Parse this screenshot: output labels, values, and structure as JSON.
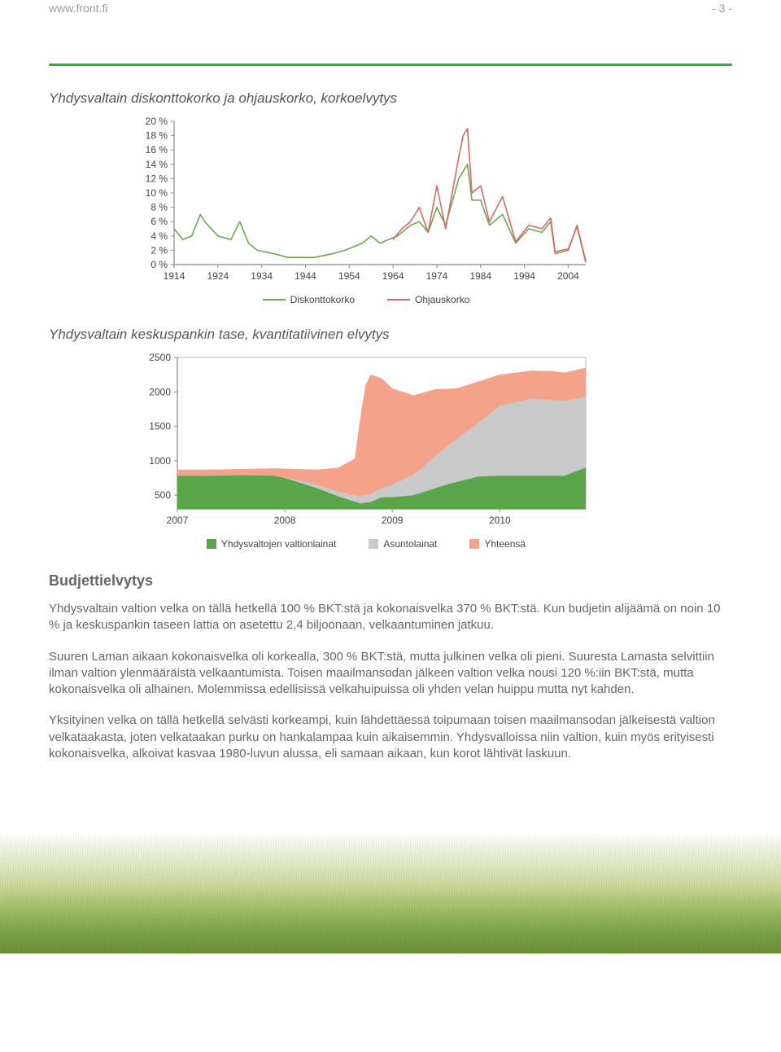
{
  "header": {
    "site": "www.front.fi",
    "page_number": "- 3 -"
  },
  "chart1": {
    "title": "Yhdysvaltain diskonttokorko ja ohjauskorko, korkoelvytys",
    "type": "line",
    "ylabels": [
      "20 %",
      "18 %",
      "16 %",
      "14 %",
      "12 %",
      "10 %",
      "8 %",
      "6 %",
      "4 %",
      "2 %",
      "0 %"
    ],
    "xlabels": [
      "1914",
      "1924",
      "1934",
      "1944",
      "1954",
      "1964",
      "1974",
      "1984",
      "1994",
      "2004"
    ],
    "ylim": [
      0,
      20
    ],
    "xlim": [
      1914,
      2008
    ],
    "series": {
      "diskontto": {
        "label": "Diskonttokorko",
        "color": "#6aa84f",
        "points": [
          [
            1914,
            5.0
          ],
          [
            1916,
            3.5
          ],
          [
            1918,
            4.0
          ],
          [
            1920,
            7.0
          ],
          [
            1921,
            6.0
          ],
          [
            1924,
            4.0
          ],
          [
            1927,
            3.5
          ],
          [
            1929,
            6.0
          ],
          [
            1931,
            3.0
          ],
          [
            1933,
            2.0
          ],
          [
            1937,
            1.5
          ],
          [
            1940,
            1.0
          ],
          [
            1946,
            1.0
          ],
          [
            1950,
            1.5
          ],
          [
            1953,
            2.0
          ],
          [
            1957,
            3.0
          ],
          [
            1959,
            4.0
          ],
          [
            1961,
            3.0
          ],
          [
            1965,
            4.0
          ],
          [
            1968,
            5.5
          ],
          [
            1970,
            6.0
          ],
          [
            1972,
            4.5
          ],
          [
            1974,
            8.0
          ],
          [
            1976,
            5.5
          ],
          [
            1979,
            12.0
          ],
          [
            1980,
            13.0
          ],
          [
            1981,
            14.0
          ],
          [
            1982,
            9.0
          ],
          [
            1984,
            9.0
          ],
          [
            1986,
            5.5
          ],
          [
            1989,
            7.0
          ],
          [
            1992,
            3.0
          ],
          [
            1995,
            5.0
          ],
          [
            1998,
            4.5
          ],
          [
            2000,
            6.0
          ],
          [
            2001,
            1.5
          ],
          [
            2004,
            2.0
          ],
          [
            2006,
            5.5
          ],
          [
            2008,
            0.5
          ]
        ]
      },
      "ohjaus": {
        "label": "Ohjauskorko",
        "color": "#e06666",
        "points": [
          [
            1964,
            3.5
          ],
          [
            1966,
            5.0
          ],
          [
            1968,
            6.0
          ],
          [
            1970,
            8.0
          ],
          [
            1972,
            4.5
          ],
          [
            1974,
            11.0
          ],
          [
            1976,
            5.0
          ],
          [
            1979,
            15.0
          ],
          [
            1980,
            18.0
          ],
          [
            1981,
            19.0
          ],
          [
            1982,
            10.0
          ],
          [
            1984,
            11.0
          ],
          [
            1986,
            6.0
          ],
          [
            1989,
            9.5
          ],
          [
            1992,
            3.2
          ],
          [
            1995,
            5.5
          ],
          [
            1998,
            5.0
          ],
          [
            2000,
            6.5
          ],
          [
            2001,
            1.8
          ],
          [
            2004,
            2.2
          ],
          [
            2006,
            5.3
          ],
          [
            2008,
            0.3
          ]
        ]
      }
    }
  },
  "chart2": {
    "title": "Yhdysvaltain keskuspankin tase, kvantitatiivinen elvytys",
    "type": "area",
    "ylabels": [
      "2500",
      "2000",
      "1500",
      "1000",
      "500"
    ],
    "xlabels": [
      "2007",
      "2008",
      "2009",
      "2010"
    ],
    "ylim": [
      300,
      2500
    ],
    "xlim": [
      2007,
      2010.8
    ],
    "series": {
      "valtionlainat": {
        "label": "Yhdysvaltojen valtionlainat",
        "color": "#5aa54a",
        "points": [
          [
            2007.0,
            780
          ],
          [
            2007.3,
            780
          ],
          [
            2007.6,
            790
          ],
          [
            2007.9,
            780
          ],
          [
            2008.0,
            750
          ],
          [
            2008.3,
            600
          ],
          [
            2008.5,
            480
          ],
          [
            2008.7,
            380
          ],
          [
            2008.8,
            400
          ],
          [
            2008.9,
            470
          ],
          [
            2009.0,
            470
          ],
          [
            2009.2,
            500
          ],
          [
            2009.5,
            650
          ],
          [
            2009.8,
            770
          ],
          [
            2010.0,
            780
          ],
          [
            2010.3,
            780
          ],
          [
            2010.6,
            780
          ],
          [
            2010.8,
            900
          ]
        ]
      },
      "asuntolainat": {
        "label": "Asuntolainat",
        "color": "#c9c9c9",
        "points": [
          [
            2007.0,
            780
          ],
          [
            2007.5,
            790
          ],
          [
            2007.9,
            780
          ],
          [
            2008.0,
            760
          ],
          [
            2008.3,
            650
          ],
          [
            2008.5,
            550
          ],
          [
            2008.7,
            480
          ],
          [
            2008.8,
            520
          ],
          [
            2008.9,
            600
          ],
          [
            2009.0,
            650
          ],
          [
            2009.2,
            800
          ],
          [
            2009.5,
            1200
          ],
          [
            2009.8,
            1550
          ],
          [
            2010.0,
            1800
          ],
          [
            2010.3,
            1900
          ],
          [
            2010.6,
            1870
          ],
          [
            2010.8,
            1930
          ]
        ]
      },
      "yhteensa": {
        "label": "Yhteensä",
        "color": "#f4a28a",
        "points": [
          [
            2007.0,
            870
          ],
          [
            2007.3,
            870
          ],
          [
            2007.6,
            880
          ],
          [
            2007.9,
            890
          ],
          [
            2008.1,
            880
          ],
          [
            2008.3,
            870
          ],
          [
            2008.5,
            900
          ],
          [
            2008.65,
            1030
          ],
          [
            2008.7,
            1600
          ],
          [
            2008.75,
            2100
          ],
          [
            2008.8,
            2250
          ],
          [
            2008.9,
            2200
          ],
          [
            2009.0,
            2050
          ],
          [
            2009.2,
            1950
          ],
          [
            2009.4,
            2040
          ],
          [
            2009.6,
            2050
          ],
          [
            2009.8,
            2150
          ],
          [
            2010.0,
            2250
          ],
          [
            2010.3,
            2310
          ],
          [
            2010.5,
            2300
          ],
          [
            2010.6,
            2280
          ],
          [
            2010.8,
            2350
          ]
        ]
      }
    }
  },
  "body": {
    "section_title": "Budjettielvytys",
    "p1": "Yhdysvaltain valtion velka on tällä hetkellä 100 % BKT:stä ja kokonaisvelka 370 % BKT:stä. Kun budjetin alijäämä on noin 10 % ja keskuspankin taseen lattia on asetettu 2,4 biljoonaan, velkaantuminen jatkuu.",
    "p2": "Suuren Laman aikaan kokonaisvelka oli korkealla, 300 % BKT:stä, mutta julkinen velka oli pieni. Suuresta Lamasta selvittiin ilman valtion ylenmääräistä velkaantumista. Toisen maailmansodan jälkeen valtion velka nousi 120 %:iin BKT:stä, mutta kokonaisvelka oli alhainen. Molemmissa edellisissä velkahuipuissa oli yhden velan huippu mutta nyt kahden.",
    "p3": "Yksityinen velka on tällä hetkellä selvästi korkeampi, kuin lähdettäessä toipumaan toisen maailmansodan jälkeisestä valtion velkataakasta, joten velkataakan purku on hankalampaa kuin aikaisemmin. Yhdysvalloissa niin valtion, kuin myös erityisesti kokonaisvelka, alkoivat kasvaa 1980-luvun alussa, eli samaan aikaan, kun korot lähtivät laskuun."
  }
}
